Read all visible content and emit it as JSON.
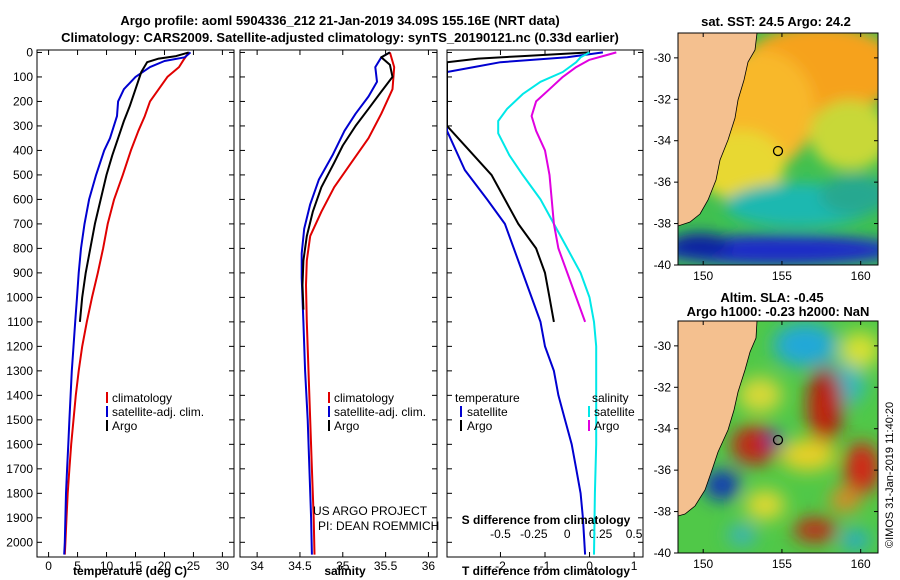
{
  "title": {
    "line1": "Argo profile: aoml 5904336_212 21-Jan-2019 34.09S 155.16E (NRT data)",
    "line2": "Climatology: CARS2009. Satellite-adjusted climatology: synTS_20190121.nc (0.33d earlier)"
  },
  "colors": {
    "climatology": "#e00000",
    "satellite": "#0000d0",
    "argo": "#000000",
    "sat_salinity": "#00e8e8",
    "argo_salinity": "#e000e0",
    "land": "#f4c08f"
  },
  "credits": {
    "line1": "US ARGO PROJECT",
    "line2": "PI: DEAN ROEMMICH"
  },
  "watermark": "©IMOS 31-Jan-2019 11:40:20",
  "depth_ticks": [
    "0",
    "100",
    "200",
    "300",
    "400",
    "500",
    "600",
    "700",
    "800",
    "900",
    "1000",
    "1100",
    "1200",
    "1300",
    "1400",
    "1500",
    "1600",
    "1700",
    "1800",
    "1900",
    "2000"
  ],
  "map_sst": {
    "title": "sat. SST: 24.5 Argo: 24.2",
    "lat_ticks": [
      "-30",
      "-32",
      "-34",
      "-36",
      "-38",
      "-40"
    ],
    "lon_ticks": [
      "150",
      "155",
      "160"
    ],
    "float_position": {
      "lon": 155.16,
      "lat": -34.09
    }
  },
  "map_sla": {
    "title1": "Altim. SLA: -0.45",
    "title2": "Argo h1000: -0.23 h2000: NaN",
    "lat_ticks": [
      "-30",
      "-32",
      "-34",
      "-36",
      "-38",
      "-40"
    ],
    "lon_ticks": [
      "150",
      "155",
      "160"
    ],
    "float_position": {
      "lon": 155.16,
      "lat": -34.09
    }
  },
  "chart_data": [
    {
      "type": "line",
      "xlabel": "temperature (deg C)",
      "ylabel": "depth",
      "xlim": [
        -2,
        32
      ],
      "ylim": [
        2060,
        -10
      ],
      "xticks": [
        "0",
        "5",
        "10",
        "15",
        "20",
        "25",
        "30"
      ],
      "legend": [
        "climatology",
        "satellite-adj. clim.",
        "Argo"
      ],
      "series": [
        {
          "name": "climatology",
          "color": "#e00000",
          "points": [
            [
              24.2,
              0
            ],
            [
              23.3,
              30
            ],
            [
              22.5,
              60
            ],
            [
              20.5,
              100
            ],
            [
              19,
              150
            ],
            [
              17.5,
              200
            ],
            [
              16.6,
              260
            ],
            [
              15.5,
              320
            ],
            [
              14.2,
              400
            ],
            [
              12.8,
              500
            ],
            [
              11.3,
              600
            ],
            [
              10.2,
              700
            ],
            [
              9.4,
              800
            ],
            [
              8.5,
              900
            ],
            [
              7.5,
              1000
            ],
            [
              6.6,
              1100
            ],
            [
              5.8,
              1200
            ],
            [
              5.2,
              1300
            ],
            [
              4.7,
              1400
            ],
            [
              4.3,
              1500
            ],
            [
              3.9,
              1600
            ],
            [
              3.6,
              1700
            ],
            [
              3.3,
              1800
            ],
            [
              3.1,
              1900
            ],
            [
              2.9,
              2000
            ],
            [
              2.8,
              2050
            ]
          ]
        },
        {
          "name": "satellite-adj. clim.",
          "color": "#0000d0",
          "points": [
            [
              24.5,
              0
            ],
            [
              23.5,
              20
            ],
            [
              20,
              35
            ],
            [
              17.5,
              60
            ],
            [
              15,
              100
            ],
            [
              13,
              150
            ],
            [
              12,
              200
            ],
            [
              11.8,
              260
            ],
            [
              10.6,
              350
            ],
            [
              9.6,
              400
            ],
            [
              8.2,
              500
            ],
            [
              7,
              600
            ],
            [
              6.2,
              700
            ],
            [
              5.6,
              800
            ],
            [
              5.2,
              900
            ],
            [
              4.9,
              1000
            ],
            [
              4.6,
              1100
            ],
            [
              4.3,
              1200
            ],
            [
              4,
              1300
            ],
            [
              3.8,
              1400
            ],
            [
              3.6,
              1500
            ],
            [
              3.4,
              1600
            ],
            [
              3.2,
              1700
            ],
            [
              3,
              1800
            ],
            [
              2.9,
              1900
            ],
            [
              2.8,
              2000
            ],
            [
              2.7,
              2050
            ]
          ]
        },
        {
          "name": "Argo",
          "color": "#000000",
          "points": [
            [
              24.2,
              0
            ],
            [
              22,
              15
            ],
            [
              19,
              25
            ],
            [
              17,
              40
            ],
            [
              16,
              80
            ],
            [
              15,
              150
            ],
            [
              14,
              220
            ],
            [
              13,
              280
            ],
            [
              12,
              350
            ],
            [
              11,
              420
            ],
            [
              10,
              500
            ],
            [
              9,
              600
            ],
            [
              8,
              700
            ],
            [
              7.2,
              800
            ],
            [
              6.4,
              900
            ],
            [
              5.8,
              1000
            ],
            [
              5.4,
              1100
            ]
          ]
        }
      ]
    },
    {
      "type": "line",
      "xlabel": "salinity",
      "ylabel": "depth",
      "xlim": [
        33.8,
        36.1
      ],
      "ylim": [
        2060,
        -10
      ],
      "xticks": [
        "34",
        "34.5",
        "35",
        "35.5",
        "36"
      ],
      "legend": [
        "climatology",
        "satellite-adj. clim.",
        "Argo"
      ],
      "series": [
        {
          "name": "climatology",
          "color": "#e00000",
          "points": [
            [
              35.55,
              0
            ],
            [
              35.6,
              60
            ],
            [
              35.58,
              150
            ],
            [
              35.45,
              250
            ],
            [
              35.3,
              350
            ],
            [
              35.1,
              450
            ],
            [
              34.9,
              550
            ],
            [
              34.75,
              650
            ],
            [
              34.62,
              750
            ],
            [
              34.58,
              850
            ],
            [
              34.57,
              950
            ],
            [
              34.58,
              1100
            ],
            [
              34.6,
              1300
            ],
            [
              34.62,
              1500
            ],
            [
              34.64,
              1700
            ],
            [
              34.66,
              1900
            ],
            [
              34.67,
              2050
            ]
          ]
        },
        {
          "name": "satellite-adj. clim.",
          "color": "#0000d0",
          "points": [
            [
              35.55,
              0
            ],
            [
              35.45,
              20
            ],
            [
              35.38,
              60
            ],
            [
              35.4,
              120
            ],
            [
              35.3,
              180
            ],
            [
              35.15,
              250
            ],
            [
              35.02,
              320
            ],
            [
              34.88,
              420
            ],
            [
              34.72,
              520
            ],
            [
              34.62,
              620
            ],
            [
              34.55,
              720
            ],
            [
              34.52,
              820
            ],
            [
              34.52,
              920
            ],
            [
              34.54,
              1100
            ],
            [
              34.56,
              1300
            ],
            [
              34.59,
              1500
            ],
            [
              34.61,
              1700
            ],
            [
              34.63,
              1900
            ],
            [
              34.64,
              2050
            ]
          ]
        },
        {
          "name": "Argo",
          "color": "#000000",
          "points": [
            [
              35.55,
              0
            ],
            [
              35.45,
              20
            ],
            [
              35.55,
              50
            ],
            [
              35.58,
              100
            ],
            [
              35.45,
              160
            ],
            [
              35.3,
              230
            ],
            [
              35.15,
              300
            ],
            [
              35,
              380
            ],
            [
              34.9,
              450
            ],
            [
              34.75,
              550
            ],
            [
              34.65,
              650
            ],
            [
              34.58,
              750
            ],
            [
              34.54,
              850
            ],
            [
              34.53,
              950
            ],
            [
              34.54,
              1050
            ]
          ]
        }
      ]
    },
    {
      "type": "line",
      "xlabel": "T difference from climatology",
      "x2label": "S difference from climatology",
      "ylabel": "depth",
      "xlim": [
        -3.2,
        1.2
      ],
      "ylim": [
        2060,
        -10
      ],
      "xticks": [
        "-2",
        "-1",
        "0",
        "1"
      ],
      "x2ticks": [
        "-0.5",
        "-0.25",
        "0",
        "0.25",
        "0.5"
      ],
      "legend_temperature": {
        "heading": "temperature",
        "items": [
          "satellite",
          "Argo"
        ]
      },
      "legend_salinity": {
        "heading": "salinity",
        "items": [
          "satellite",
          "Argo"
        ]
      },
      "series": [
        {
          "name": "temperature satellite",
          "color": "#0000d0",
          "points": [
            [
              0.3,
              0
            ],
            [
              -0.5,
              20
            ],
            [
              -2,
              40
            ],
            [
              -2.6,
              60
            ],
            [
              -3.2,
              80
            ],
            [
              -3.2,
              130
            ],
            [
              -3.2,
              320
            ],
            [
              -2.8,
              480
            ],
            [
              -2.3,
              600
            ],
            [
              -1.9,
              700
            ],
            [
              -1.7,
              800
            ],
            [
              -1.5,
              900
            ],
            [
              -1.3,
              1000
            ],
            [
              -1.1,
              1100
            ],
            [
              -1,
              1200
            ],
            [
              -0.8,
              1300
            ],
            [
              -0.7,
              1400
            ],
            [
              -0.55,
              1500
            ],
            [
              -0.4,
              1600
            ],
            [
              -0.3,
              1700
            ],
            [
              -0.2,
              1800
            ],
            [
              -0.15,
              1900
            ],
            [
              -0.1,
              2050
            ]
          ]
        },
        {
          "name": "temperature Argo",
          "color": "#000000",
          "points": [
            [
              0,
              0
            ],
            [
              -1.5,
              15
            ],
            [
              -2.5,
              25
            ],
            [
              -3.2,
              40
            ],
            [
              -3.2,
              300
            ],
            [
              -2.7,
              400
            ],
            [
              -2.2,
              500
            ],
            [
              -1.9,
              600
            ],
            [
              -1.6,
              700
            ],
            [
              -1.2,
              800
            ],
            [
              -1,
              900
            ],
            [
              -0.9,
              1000
            ],
            [
              -0.8,
              1100
            ]
          ]
        },
        {
          "name": "salinity satellite",
          "color": "#00e8e8",
          "points": [
            [
              0,
              0
            ],
            [
              -0.2,
              20
            ],
            [
              -0.3,
              40
            ],
            [
              -0.6,
              80
            ],
            [
              -1.1,
              120
            ],
            [
              -1.5,
              170
            ],
            [
              -1.85,
              230
            ],
            [
              -2.05,
              280
            ],
            [
              -2.05,
              330
            ],
            [
              -1.8,
              420
            ],
            [
              -1.5,
              500
            ],
            [
              -1.1,
              600
            ],
            [
              -0.8,
              700
            ],
            [
              -0.5,
              800
            ],
            [
              -0.2,
              900
            ],
            [
              0,
              1000
            ],
            [
              0.1,
              1100
            ],
            [
              0.15,
              1200
            ],
            [
              0.15,
              1400
            ],
            [
              0.15,
              1600
            ],
            [
              0.12,
              1800
            ],
            [
              0.1,
              2050
            ]
          ]
        },
        {
          "name": "salinity Argo",
          "color": "#e000e0",
          "points": [
            [
              0.6,
              0
            ],
            [
              0.4,
              10
            ],
            [
              0,
              30
            ],
            [
              -0.3,
              60
            ],
            [
              -0.6,
              100
            ],
            [
              -0.9,
              150
            ],
            [
              -1.2,
              200
            ],
            [
              -1.3,
              260
            ],
            [
              -1.2,
              320
            ],
            [
              -1,
              400
            ],
            [
              -0.9,
              500
            ],
            [
              -0.85,
              600
            ],
            [
              -0.8,
              700
            ],
            [
              -0.7,
              800
            ],
            [
              -0.5,
              900
            ],
            [
              -0.3,
              1000
            ],
            [
              -0.1,
              1100
            ]
          ]
        }
      ]
    }
  ]
}
